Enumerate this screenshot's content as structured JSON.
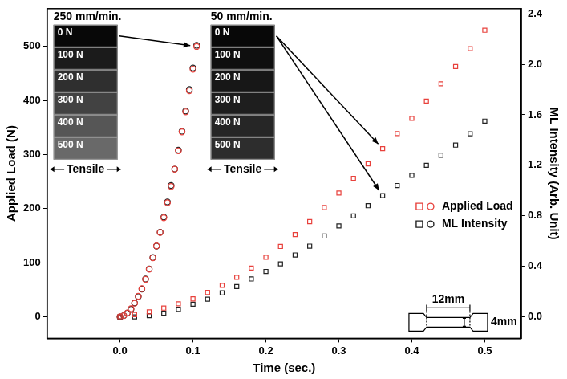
{
  "chart_data": {
    "type": "scatter",
    "x_label": "Time (sec.)",
    "y_label": "Applied Load (N)",
    "y2_label": "ML Intensity (Arb. Unit)",
    "xlim": [
      -0.1,
      0.55
    ],
    "xticks": [
      {
        "value": 0,
        "label": "0.0"
      },
      0.1,
      0.2,
      0.3,
      0.4,
      0.5
    ],
    "ylim": [
      -40,
      570
    ],
    "yticks": [
      0,
      100,
      200,
      300,
      400,
      500
    ],
    "y2lim": [
      -0.17,
      2.44
    ],
    "y2ticks": [
      {
        "value": 0,
        "label": "0.0"
      },
      0.4,
      0.8,
      1.2,
      1.6,
      {
        "value": 2,
        "label": "2.0"
      },
      2.4
    ],
    "grid": false,
    "legend": "right",
    "series": [
      {
        "name": "Applied Load",
        "color": "#e8413c",
        "marker": "square",
        "x": [
          0,
          0.02,
          0.04,
          0.06,
          0.08,
          0.1,
          0.12,
          0.14,
          0.16,
          0.18,
          0.2,
          0.22,
          0.24,
          0.26,
          0.28,
          0.3,
          0.32,
          0.34,
          0.36,
          0.38,
          0.4,
          0.42,
          0.44,
          0.46,
          0.48,
          0.5
        ],
        "values": [
          0,
          4,
          9,
          16,
          24,
          33,
          45,
          58,
          73,
          90,
          110,
          130,
          152,
          176,
          202,
          229,
          256,
          283,
          311,
          339,
          367,
          399,
          431,
          463,
          496,
          530
        ]
      },
      {
        "name": "ML Intensity",
        "color": "#222222",
        "marker": "square",
        "axis": "y2",
        "x": [
          0,
          0.02,
          0.04,
          0.06,
          0.08,
          0.1,
          0.12,
          0.14,
          0.16,
          0.18,
          0.2,
          0.22,
          0.24,
          0.26,
          0.28,
          0.3,
          0.32,
          0.34,
          0.36,
          0.38,
          0.4,
          0.42,
          0.44,
          0.46,
          0.48,
          0.5
        ],
        "values": [
          0,
          0,
          0.01,
          0.03,
          0.06,
          0.1,
          0.14,
          0.19,
          0.24,
          0.3,
          0.36,
          0.42,
          0.49,
          0.56,
          0.64,
          0.72,
          0.8,
          0.88,
          0.96,
          1.04,
          1.12,
          1.2,
          1.28,
          1.36,
          1.45,
          1.55
        ]
      },
      {
        "name": "Applied Load",
        "color": "#e8413c",
        "marker": "circle",
        "x": [
          0,
          0.005,
          0.01,
          0.015,
          0.02,
          0.025,
          0.03,
          0.035,
          0.04,
          0.045,
          0.05,
          0.055,
          0.06,
          0.065,
          0.07,
          0.075,
          0.08,
          0.085,
          0.09,
          0.095,
          0.1,
          0.105
        ],
        "values": [
          0,
          2,
          7,
          15,
          25,
          38,
          52,
          69,
          88,
          109,
          131,
          156,
          183,
          211,
          241,
          273,
          307,
          342,
          379,
          418,
          458,
          500
        ]
      },
      {
        "name": "ML Intensity",
        "color": "#222222",
        "marker": "circle",
        "axis": "y2",
        "x": [
          0,
          0.005,
          0.01,
          0.015,
          0.02,
          0.025,
          0.03,
          0.035,
          0.04,
          0.045,
          0.05,
          0.055,
          0.06,
          0.065,
          0.07,
          0.075,
          0.08,
          0.085,
          0.09,
          0.095,
          0.1,
          0.105
        ],
        "values": [
          0,
          0.01,
          0.03,
          0.06,
          0.11,
          0.16,
          0.22,
          0.3,
          0.38,
          0.47,
          0.56,
          0.67,
          0.79,
          0.91,
          1.04,
          1.17,
          1.32,
          1.47,
          1.63,
          1.8,
          1.97,
          2.15
        ]
      }
    ],
    "annotations": {
      "insets": [
        {
          "title": "250 mm/min.",
          "frames": [
            "0 N",
            "100 N",
            "200 N",
            "300 N",
            "400 N",
            "500 N"
          ],
          "caption": "Tensile"
        },
        {
          "title": "50 mm/min.",
          "frames": [
            "0 N",
            "100 N",
            "200 N",
            "300 N",
            "400 N",
            "500 N"
          ],
          "caption": "Tensile"
        }
      ],
      "specimen": {
        "length_label": "12mm",
        "width_label": "4mm"
      }
    }
  }
}
